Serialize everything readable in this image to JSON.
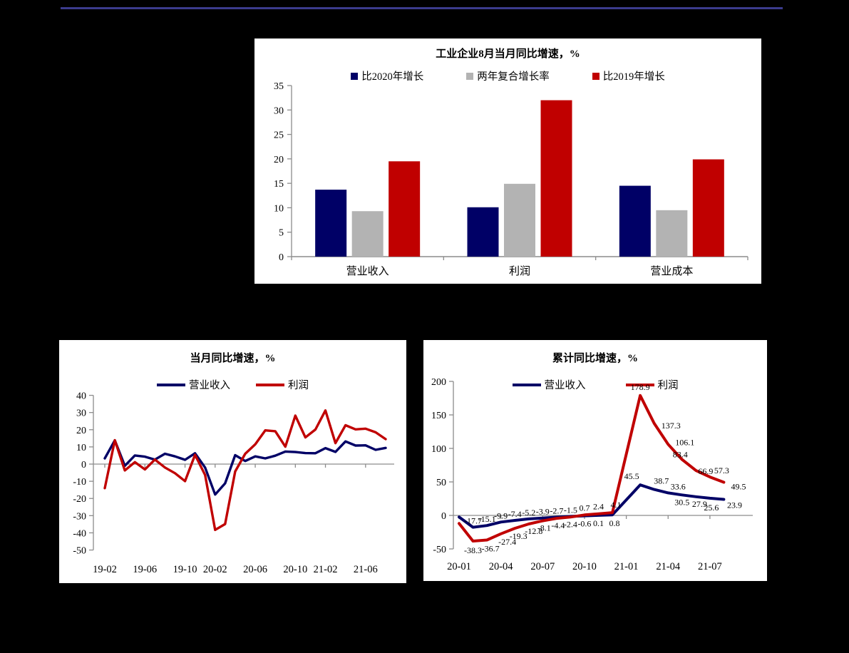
{
  "page": {
    "background": "#000000"
  },
  "colors": {
    "navy": "#000066",
    "gray": "#B3B3B3",
    "red": "#C00000",
    "axis": "#8C8C8C",
    "rule": "#3B3B8C",
    "panel": "#FFFFFF",
    "text": "#000000"
  },
  "chart_data": [
    {
      "id": "industrial-august-bar",
      "type": "bar",
      "title": "工业企业8月当月同比增速，%",
      "legend": [
        {
          "label": "比2020年增长",
          "color_key": "navy"
        },
        {
          "label": "两年复合增长率",
          "color_key": "gray"
        },
        {
          "label": "比2019年增长",
          "color_key": "red"
        }
      ],
      "categories": [
        "营业收入",
        "利润",
        "营业成本"
      ],
      "series": [
        {
          "name": "比2020年增长",
          "color_key": "navy",
          "values": [
            13.7,
            10.1,
            14.5
          ]
        },
        {
          "name": "两年复合增长率",
          "color_key": "gray",
          "values": [
            9.3,
            14.9,
            9.5
          ]
        },
        {
          "name": "比2019年增长",
          "color_key": "red",
          "values": [
            19.5,
            32.0,
            19.9
          ]
        }
      ],
      "ylim": [
        0,
        35
      ],
      "yticks": [
        0,
        5,
        10,
        15,
        20,
        25,
        30,
        35
      ],
      "grid": "off",
      "legend_position": "top"
    },
    {
      "id": "monthly-yoy-line",
      "type": "line",
      "title": "当月同比增速，%",
      "legend": [
        {
          "label": "营业收入",
          "color_key": "navy"
        },
        {
          "label": "利润",
          "color_key": "red"
        }
      ],
      "x": [
        "19-02",
        "19-03",
        "19-04",
        "19-05",
        "19-06",
        "19-07",
        "19-08",
        "19-09",
        "19-10",
        "19-11",
        "19-12",
        "20-02",
        "20-03",
        "20-04",
        "20-05",
        "20-06",
        "20-07",
        "20-08",
        "20-09",
        "20-10",
        "20-11",
        "20-12",
        "21-02",
        "21-03",
        "21-04",
        "21-05",
        "21-06",
        "21-07",
        "21-08"
      ],
      "xtick_labels": [
        "19-02",
        "19-06",
        "19-10",
        "20-02",
        "20-06",
        "20-10",
        "21-02",
        "21-06"
      ],
      "xtick_indices": [
        0,
        4,
        8,
        11,
        15,
        19,
        22,
        26
      ],
      "ylim": [
        -50,
        40
      ],
      "yticks": [
        -50,
        -40,
        -30,
        -20,
        -10,
        0,
        10,
        20,
        30,
        40
      ],
      "grid": "off",
      "legend_position": "top",
      "series": [
        {
          "name": "营业收入",
          "color_key": "navy",
          "values": [
            3.3,
            13.8,
            -1.0,
            5.0,
            4.3,
            2.6,
            6.0,
            4.5,
            2.5,
            6.3,
            -2.0,
            -17.7,
            -11.2,
            5.2,
            1.8,
            4.5,
            3.3,
            4.9,
            7.3,
            7.0,
            6.4,
            6.3,
            9.3,
            7.1,
            13.2,
            10.8,
            10.9,
            8.3,
            9.4
          ]
        },
        {
          "name": "利润",
          "color_key": "red",
          "values": [
            -14.0,
            13.9,
            -3.7,
            1.1,
            -3.1,
            2.6,
            -2.0,
            -5.3,
            -9.9,
            5.4,
            -6.3,
            -38.3,
            -34.9,
            -4.3,
            6.0,
            11.5,
            19.6,
            19.1,
            10.1,
            28.2,
            15.5,
            20.1,
            31.2,
            12.2,
            22.6,
            20.2,
            20.6,
            18.5,
            14.5
          ]
        }
      ]
    },
    {
      "id": "cumulative-yoy-line",
      "type": "line",
      "title": "累计同比增速，%",
      "legend": [
        {
          "label": "营业收入",
          "color_key": "navy"
        },
        {
          "label": "利润",
          "color_key": "red"
        }
      ],
      "x": [
        "20-01",
        "20-02",
        "20-03",
        "20-04",
        "20-05",
        "20-06",
        "20-07",
        "20-08",
        "20-09",
        "20-10",
        "20-11",
        "20-12",
        "21-02",
        "21-03",
        "21-04",
        "21-05",
        "21-06",
        "21-07",
        "21-08"
      ],
      "xtick_labels": [
        "20-01",
        "20-04",
        "20-07",
        "20-10",
        "21-01",
        "21-04",
        "21-07"
      ],
      "ylim": [
        -50,
        200
      ],
      "yticks": [
        -50,
        0,
        50,
        100,
        150,
        200
      ],
      "grid": "off",
      "legend_position": "top",
      "series": [
        {
          "name": "营业收入",
          "color_key": "navy",
          "values": [
            -2.5,
            -17.7,
            -15.1,
            -9.9,
            -7.4,
            -5.2,
            -3.9,
            -2.7,
            -1.5,
            -0.6,
            0.1,
            0.8,
            45.5,
            38.7,
            33.6,
            30.5,
            27.9,
            25.6,
            23.9
          ],
          "point_labels": [
            "",
            "-17.7",
            "-15.1",
            "-9.9",
            "-7.4",
            "-5.2",
            "-3.9",
            "-2.7",
            "-1.5",
            "-0.6",
            "0.1",
            "0.8",
            "45.5",
            "38.7",
            "33.6",
            "30.5",
            "27.9",
            "25.6",
            "23.9"
          ]
        },
        {
          "name": "利润",
          "color_key": "red",
          "values": [
            -12.0,
            -38.3,
            -36.7,
            -27.4,
            -19.3,
            -12.8,
            -8.1,
            -4.4,
            -2.4,
            0.7,
            2.4,
            4.1,
            178.9,
            137.3,
            106.1,
            83.4,
            66.9,
            57.3,
            49.5
          ],
          "point_labels": [
            "",
            "-38.3",
            "-36.7",
            "-27.4",
            "-19.3",
            "-12.8",
            "-8.1",
            "-4.4",
            "-2.4",
            "0.7",
            "2.4",
            "4.1",
            "178.9",
            "137.3",
            "106.1",
            "83.4",
            "66.9",
            "57.3",
            "49.5"
          ]
        }
      ]
    }
  ]
}
